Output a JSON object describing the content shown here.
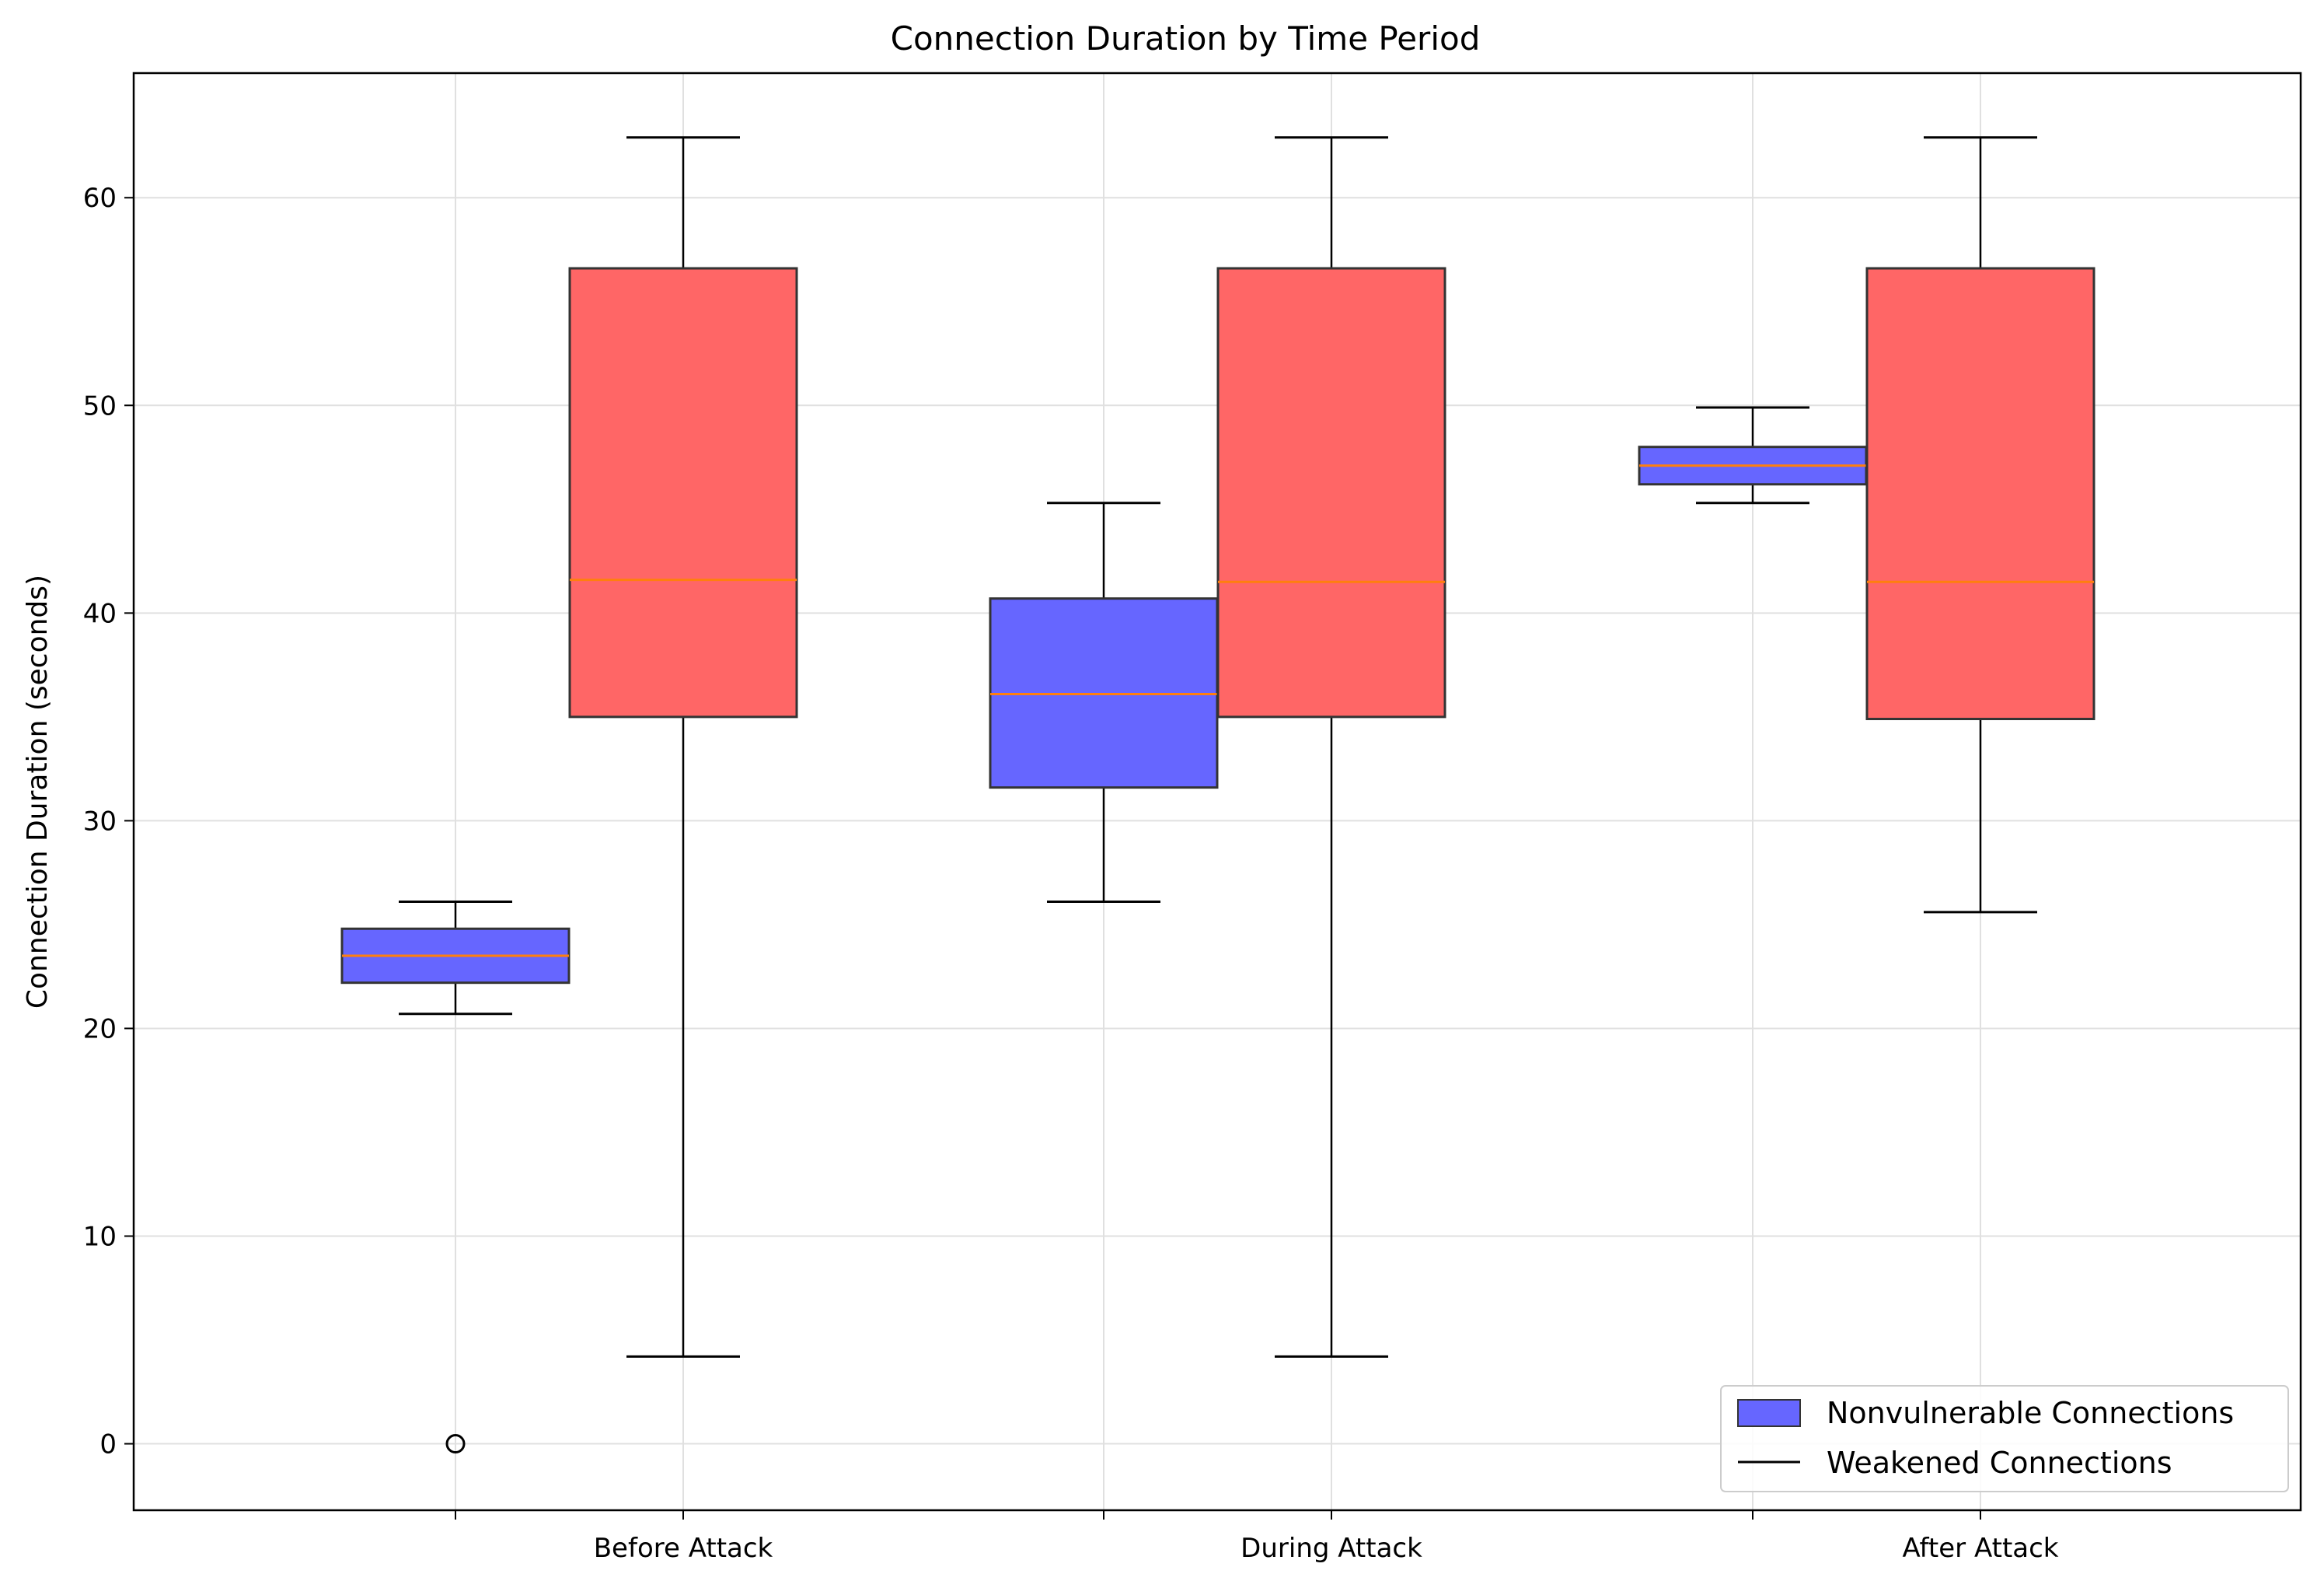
{
  "chart_data": {
    "type": "box",
    "title": "Connection Duration by Time Period",
    "xlabel": "",
    "ylabel": "Connection Duration (seconds)",
    "ylim": [
      -3.2,
      66
    ],
    "yticks": [
      0,
      10,
      20,
      30,
      40,
      50,
      60
    ],
    "categories": [
      "Before Attack",
      "During Attack",
      "After Attack"
    ],
    "grid": true,
    "legend_position": "lower-right",
    "series": [
      {
        "name": "Nonvulnerable Connections",
        "color": "#6666ff",
        "boxes": [
          {
            "whisker_low": 20.7,
            "q1": 22.2,
            "median": 23.5,
            "q3": 24.8,
            "whisker_high": 26.1,
            "outliers": [
              0
            ]
          },
          {
            "whisker_low": 26.1,
            "q1": 31.6,
            "median": 36.1,
            "q3": 40.7,
            "whisker_high": 45.3,
            "outliers": []
          },
          {
            "whisker_low": 45.3,
            "q1": 46.2,
            "median": 47.1,
            "q3": 48.0,
            "whisker_high": 49.9,
            "outliers": []
          }
        ]
      },
      {
        "name": "Weakened Connections",
        "color": "#ff6666",
        "boxes": [
          {
            "whisker_low": 4.2,
            "q1": 35.0,
            "median": 41.6,
            "q3": 56.6,
            "whisker_high": 62.9,
            "outliers": []
          },
          {
            "whisker_low": 4.2,
            "q1": 35.0,
            "median": 41.5,
            "q3": 56.6,
            "whisker_high": 62.9,
            "outliers": []
          },
          {
            "whisker_low": 25.6,
            "q1": 34.9,
            "median": 41.5,
            "q3": 56.6,
            "whisker_high": 62.9,
            "outliers": []
          }
        ]
      }
    ]
  }
}
